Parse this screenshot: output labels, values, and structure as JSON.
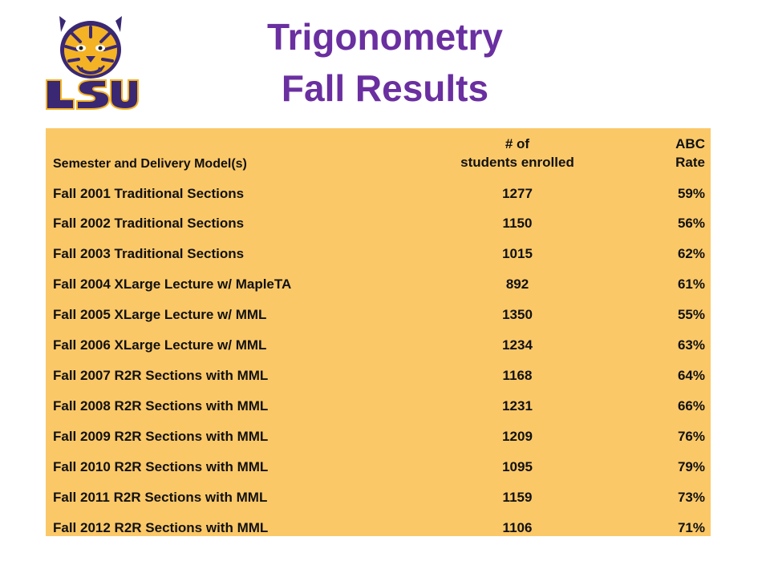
{
  "title": {
    "line1": "Trigonometry",
    "line2": "Fall Results"
  },
  "logo": {
    "text": "LSU",
    "icon": "lsu-tiger-logo"
  },
  "colors": {
    "title": "#6a2fa0",
    "table_bg": "#fbc868",
    "logo_purple": "#3a2873",
    "logo_gold": "#f4b324"
  },
  "table": {
    "headers": {
      "semester": "Semester and Delivery Model(s)",
      "enrolled_line1": "# of",
      "enrolled_line2": "students enrolled",
      "rate_line1": "ABC",
      "rate_line2": "Rate"
    },
    "rows": [
      {
        "semester": "Fall 2001  Traditional Sections",
        "enrolled": "1277",
        "rate": "59%"
      },
      {
        "semester": "Fall 2002  Traditional Sections",
        "enrolled": "1150",
        "rate": "56%"
      },
      {
        "semester": "Fall 2003  Traditional Sections",
        "enrolled": "1015",
        "rate": "62%"
      },
      {
        "semester": "Fall 2004  XLarge Lecture w/ MapleTA",
        "enrolled": "892",
        "rate": "61%"
      },
      {
        "semester": "Fall 2005  XLarge Lecture w/ MML",
        "enrolled": "1350",
        "rate": "55%"
      },
      {
        "semester": "Fall 2006  XLarge Lecture w/ MML",
        "enrolled": "1234",
        "rate": "63%"
      },
      {
        "semester": "Fall 2007  R2R Sections with MML",
        "enrolled": "1168",
        "rate": "64%"
      },
      {
        "semester": "Fall 2008  R2R Sections with MML",
        "enrolled": "1231",
        "rate": "66%"
      },
      {
        "semester": "Fall 2009  R2R Sections with MML",
        "enrolled": "1209",
        "rate": "76%"
      },
      {
        "semester": "Fall 2010  R2R Sections with MML",
        "enrolled": "1095",
        "rate": "79%"
      },
      {
        "semester": "Fall 2011  R2R Sections with MML",
        "enrolled": "1159",
        "rate": "73%"
      },
      {
        "semester": "Fall 2012  R2R Sections with MML",
        "enrolled": "1106",
        "rate": "71%"
      }
    ]
  }
}
